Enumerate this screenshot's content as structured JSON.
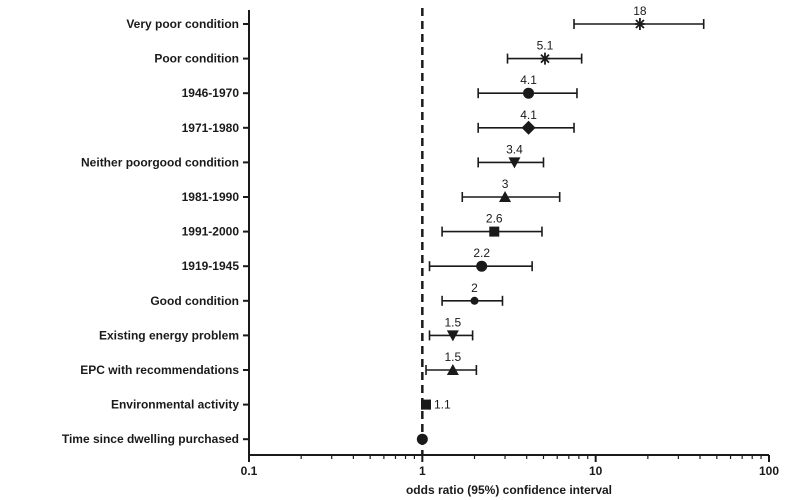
{
  "chart_data": {
    "type": "forest",
    "xlabel": "odds ratio (95%) confidence interval",
    "x_scale": "log",
    "xlim": [
      0.1,
      100
    ],
    "x_ticks": [
      0.1,
      1,
      10,
      100
    ],
    "x_tick_labels": [
      "0.1",
      "1",
      "10",
      "100"
    ],
    "reference_line": 1,
    "grid": false,
    "rows": [
      {
        "label": "Very poor condition",
        "or": 18,
        "ci": [
          7.5,
          42
        ],
        "value_label": "18",
        "marker": "star"
      },
      {
        "label": "Poor condition",
        "or": 5.1,
        "ci": [
          3.1,
          8.3
        ],
        "value_label": "5.1",
        "marker": "star"
      },
      {
        "label": "1946-1970",
        "or": 4.1,
        "ci": [
          2.1,
          7.8
        ],
        "value_label": "4.1",
        "marker": "circle"
      },
      {
        "label": "1971-1980",
        "or": 4.1,
        "ci": [
          2.1,
          7.5
        ],
        "value_label": "4.1",
        "marker": "diamond"
      },
      {
        "label": "Neither poorgood condition",
        "or": 3.4,
        "ci": [
          2.1,
          5.0
        ],
        "value_label": "3.4",
        "marker": "triangle-down"
      },
      {
        "label": "1981-1990",
        "or": 3.0,
        "ci": [
          1.7,
          6.2
        ],
        "value_label": "3",
        "marker": "triangle-up"
      },
      {
        "label": "1991-2000",
        "or": 2.6,
        "ci": [
          1.3,
          4.9
        ],
        "value_label": "2.6",
        "marker": "square"
      },
      {
        "label": "1919-1945",
        "or": 2.2,
        "ci": [
          1.1,
          4.3
        ],
        "value_label": "2.2",
        "marker": "circle"
      },
      {
        "label": "Good condition",
        "or": 2.0,
        "ci": [
          1.3,
          2.9
        ],
        "value_label": "2",
        "marker": "circle-small"
      },
      {
        "label": "Existing energy problem",
        "or": 1.5,
        "ci": [
          1.1,
          1.95
        ],
        "value_label": "1.5",
        "marker": "triangle-down"
      },
      {
        "label": "EPC with recommendations",
        "or": 1.5,
        "ci": [
          1.05,
          2.05
        ],
        "value_label": "1.5",
        "marker": "triangle-up"
      },
      {
        "label": "Environmental activity",
        "or": 1.05,
        "ci": [
          1.0,
          1.1
        ],
        "value_label": "1.1",
        "marker": "square"
      },
      {
        "label": "Time since dwelling purchased",
        "or": 1.0,
        "ci": [
          1.0,
          1.0
        ],
        "value_label": "",
        "marker": "circle"
      }
    ]
  }
}
